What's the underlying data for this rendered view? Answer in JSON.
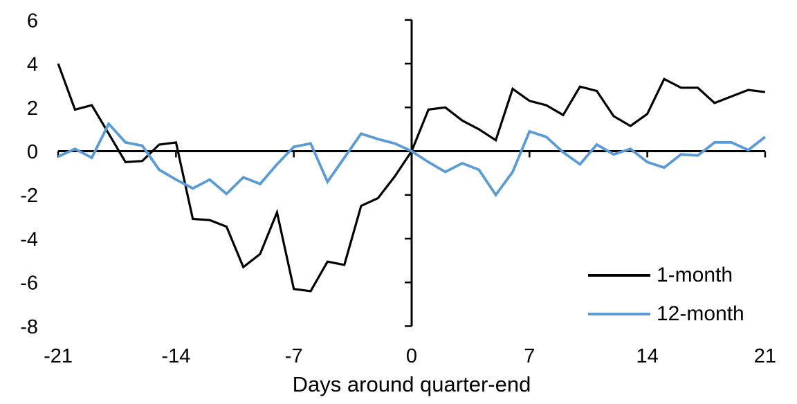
{
  "figure": {
    "background_color": "#ffffff",
    "axis_color": "#000000",
    "tick_label_font_px": 29,
    "axis_title_font_px": 31
  },
  "chart_data": {
    "type": "line",
    "title": "",
    "xlabel": "Days around quarter-end",
    "ylabel": "",
    "xlim": [
      -21,
      21
    ],
    "ylim": [
      -8,
      6
    ],
    "x_ticks": [
      -21,
      -14,
      -7,
      0,
      7,
      14,
      21
    ],
    "y_ticks": [
      6,
      4,
      2,
      0,
      -2,
      -4,
      -6,
      -8
    ],
    "grid": false,
    "legend_position": "inside-lower-right",
    "x": [
      -21,
      -20,
      -19,
      -18,
      -17,
      -16,
      -15,
      -14,
      -13,
      -12,
      -11,
      -10,
      -9,
      -8,
      -7,
      -6,
      -5,
      -4,
      -3,
      -2,
      -1,
      0,
      1,
      2,
      3,
      4,
      5,
      6,
      7,
      8,
      9,
      10,
      11,
      12,
      13,
      14,
      15,
      16,
      17,
      18,
      19,
      20,
      21
    ],
    "series": [
      {
        "name": "1-month",
        "color": "#000000",
        "stroke_px": 3.2,
        "values": [
          4.0,
          1.9,
          2.1,
          0.8,
          -0.5,
          -0.45,
          0.3,
          0.4,
          -3.1,
          -3.15,
          -3.45,
          -5.3,
          -4.7,
          -2.8,
          -6.3,
          -6.4,
          -5.05,
          -5.2,
          -2.5,
          -2.15,
          -1.15,
          0.0,
          1.9,
          2.0,
          1.4,
          1.0,
          0.5,
          2.85,
          2.3,
          2.1,
          1.65,
          2.95,
          2.75,
          1.6,
          1.15,
          1.7,
          3.3,
          2.9,
          2.9,
          2.2,
          2.5,
          2.8,
          2.7
        ]
      },
      {
        "name": "12-month",
        "color": "#5B9BD5",
        "stroke_px": 3.8,
        "values": [
          -0.25,
          0.1,
          -0.3,
          1.25,
          0.4,
          0.25,
          -0.85,
          -1.3,
          -1.7,
          -1.3,
          -1.95,
          -1.2,
          -1.5,
          -0.6,
          0.2,
          0.35,
          -1.4,
          -0.3,
          0.8,
          0.55,
          0.35,
          0.0,
          -0.5,
          -0.95,
          -0.55,
          -0.85,
          -2.0,
          -0.95,
          0.9,
          0.65,
          -0.05,
          -0.6,
          0.3,
          -0.15,
          0.1,
          -0.5,
          -0.75,
          -0.15,
          -0.2,
          0.4,
          0.4,
          0.05,
          0.65
        ]
      }
    ]
  }
}
